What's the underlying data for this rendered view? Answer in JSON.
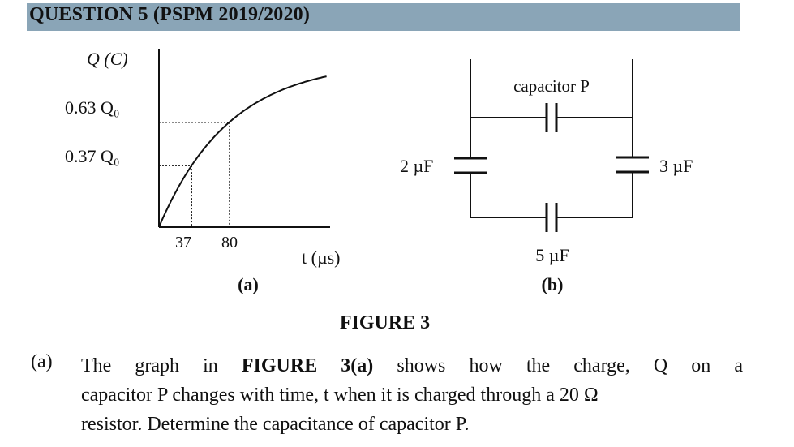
{
  "header": {
    "title": "QUESTION 5 (PSPM 2019/2020)"
  },
  "graph": {
    "caption": "(a)",
    "y_axis_label": "Q (C)",
    "x_axis_label": "t (µs)",
    "y_tick_labels": [
      "0.63 Q₀",
      "0.37 Q₀"
    ],
    "x_tick_labels": [
      "37",
      "80"
    ]
  },
  "chart_data": {
    "type": "line",
    "x": [
      0,
      37,
      80
    ],
    "y_labels": [
      "0",
      "0.37 Q₀",
      "0.63 Q₀"
    ],
    "series": [
      {
        "x": [
          0,
          37,
          80
        ],
        "y_fraction_of_Q0": [
          0,
          0.37,
          0.63
        ]
      }
    ],
    "xlabel": "t (µs)",
    "ylabel": "Q (C)",
    "grid": false
  },
  "circuit": {
    "caption": "(b)",
    "capacitor_p_label": "capacitor P",
    "left_capacitor_label": "2 µF",
    "right_capacitor_label": "3 µF",
    "bottom_capacitor_label": "5 µF"
  },
  "figure_title": "FIGURE 3",
  "question": {
    "part_label": "(a)",
    "line1_pre": "The graph in ",
    "line1_bold": "FIGURE 3(a)",
    "line1_post": " shows how the charge, Q on a",
    "line2": "capacitor P changes with time, t when it is charged through a 20 Ω",
    "line3": "resistor. Determine the capacitance of capacitor P."
  }
}
